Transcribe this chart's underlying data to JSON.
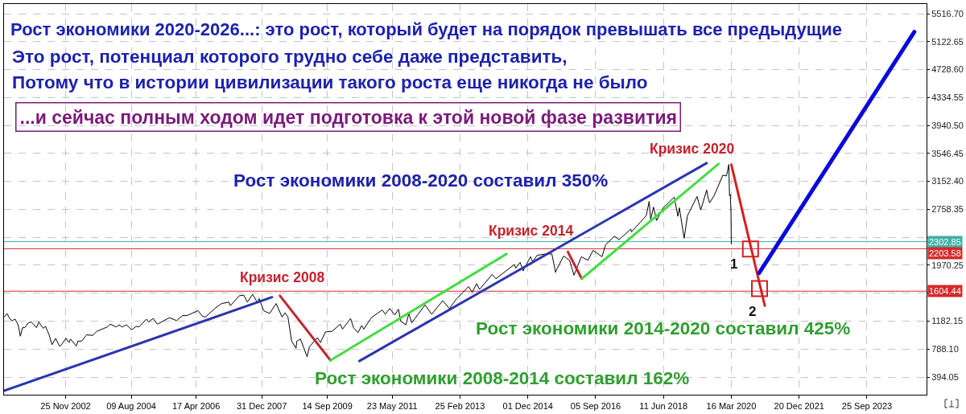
{
  "chart_data": {
    "type": "line",
    "title": "Рост экономики 2020-2026...: это рост, который будет на порядок превышать все предыдущие",
    "subtitle": "Это рост, потенциал которого трудно себе даже представить,\nПотому что в истории цивилизации такого роста еще никогда не было",
    "annotations": [
      "...и сейчас полным ходом идет подготовка к этой новой фазе развития",
      "Кризис 2020",
      "Рост экономики 2008-2020 составил 350%",
      "Кризис 2014",
      "Кризис 2008",
      "1",
      "2",
      "Рост экономики 2014-2020 составил 425%",
      "Рост экономики 2008-2014 составил 162%"
    ],
    "xlim": [
      "2001-04-19",
      "2025-04-13"
    ],
    "xticks": [
      {
        "value": "2002-11-25",
        "label": "25 Nov 2002"
      },
      {
        "value": "2004-08-09",
        "label": "09 Aug 2004"
      },
      {
        "value": "2006-04-17",
        "label": "17 Apr 2006"
      },
      {
        "value": "2007-12-31",
        "label": "31 Dec 2007"
      },
      {
        "value": "2009-09-14",
        "label": "14 Sep 2009"
      },
      {
        "value": "2011-05-23",
        "label": "23 May 2011"
      },
      {
        "value": "2013-02-25",
        "label": "25 Feb 2013"
      },
      {
        "value": "2014-12-01",
        "label": "01 Dec 2014"
      },
      {
        "value": "2016-09-05",
        "label": "05 Sep 2016"
      },
      {
        "value": "2018-06-11",
        "label": "11 Jun 2018"
      },
      {
        "value": "2020-03-16",
        "label": "16 Mar 2020"
      },
      {
        "value": "2021-12-20",
        "label": "20 Dec 2021"
      },
      {
        "value": "2023-09-25",
        "label": "25 Sep 2023"
      }
    ],
    "ylim": [
      145,
      5653
    ],
    "yticks": [
      394.05,
      {
        "value": 788.1,
        "label": "788.10"
      },
      1182.15,
      {
        "value": 1576.2,
        "label": null
      },
      1970.25,
      {
        "value": 2364.3,
        "label": null
      },
      2758.35,
      {
        "value": 3152.4,
        "label": "3152.40"
      },
      3546.45,
      {
        "value": 3940.5,
        "label": "3940.50"
      },
      4334.55,
      {
        "value": 4728.6,
        "label": "4728.60"
      },
      5122.65,
      {
        "value": 5516.7,
        "label": "5516.70"
      }
    ],
    "grid": true,
    "ref_lines": [
      {
        "axis": "y",
        "value": 2302.85,
        "label": "2302.85",
        "color": "#3fb0a8"
      },
      {
        "axis": "y",
        "value": 2203.58,
        "label": "2203.58",
        "color": "#d42a2a"
      },
      {
        "axis": "y",
        "value": 1604.44,
        "label": "1604.44",
        "color": "#d42a2a"
      }
    ],
    "series": [
      {
        "type": "line",
        "color": "#000000",
        "x": [
          "2001-04-20",
          "2001-05-18",
          "2001-06-15",
          "2001-07-06",
          "2001-08-03",
          "2001-08-31",
          "2001-09-21",
          "2001-10-12",
          "2001-11-02",
          "2001-12-07",
          "2002-01-04",
          "2002-02-22",
          "2002-03-15",
          "2002-04-26",
          "2002-05-17",
          "2002-06-21",
          "2002-07-19",
          "2002-08-23",
          "2002-09-27",
          "2002-10-11",
          "2002-11-29",
          "2002-12-27",
          "2003-01-10",
          "2003-03-07",
          "2003-03-21",
          "2003-04-25",
          "2003-06-13",
          "2003-08-08",
          "2003-09-19",
          "2003-12-26",
          "2004-01-23",
          "2004-03-19",
          "2004-04-16",
          "2004-05-14",
          "2004-06-25",
          "2004-08-13",
          "2004-09-24",
          "2004-10-22",
          "2004-12-31",
          "2005-01-21",
          "2005-03-04",
          "2005-04-15",
          "2005-08-05",
          "2005-10-14",
          "2005-12-09",
          "2006-01-20",
          "2006-05-05",
          "2006-06-16",
          "2006-07-14",
          "2006-10-20",
          "2006-12-15",
          "2007-02-23",
          "2007-03-09",
          "2007-06-01",
          "2007-07-13",
          "2007-08-17",
          "2007-10-05",
          "2007-11-23",
          "2007-12-07",
          "2008-01-18",
          "2008-03-14",
          "2008-05-16",
          "2008-07-11",
          "2008-08-08",
          "2008-09-05",
          "2008-10-10",
          "2008-11-21",
          "2008-11-28",
          "2009-01-02",
          "2009-03-06",
          "2009-03-27",
          "2009-06-12",
          "2009-07-10",
          "2009-08-28",
          "2009-10-30",
          "2010-01-15",
          "2010-02-05",
          "2010-04-23",
          "2010-05-21",
          "2010-07-02",
          "2010-08-06",
          "2010-08-27",
          "2010-11-05",
          "2011-02-18",
          "2011-03-18",
          "2011-04-29",
          "2011-06-17",
          "2011-07-22",
          "2011-08-12",
          "2011-09-30",
          "2011-10-28",
          "2011-11-25",
          "2012-03-30",
          "2012-06-01",
          "2012-09-14",
          "2012-11-16",
          "2013-01-25",
          "2013-05-17",
          "2013-06-21",
          "2013-08-02",
          "2013-08-30",
          "2013-12-27",
          "2014-01-31",
          "2014-07-25",
          "2014-08-08",
          "2014-09-19",
          "2014-10-17",
          "2014-12-26",
          "2015-01-16",
          "2015-02-27",
          "2015-05-22",
          "2015-07-17",
          "2015-08-21",
          "2015-09-04",
          "2015-11-06",
          "2016-01-01",
          "2016-02-12",
          "2016-04-22",
          "2016-06-24",
          "2016-08-12",
          "2016-11-04",
          "2016-12-09",
          "2017-03-03",
          "2017-04-14",
          "2017-08-04",
          "2017-08-11",
          "2017-12-29",
          "2018-01-26",
          "2018-02-09",
          "2018-03-09",
          "2018-04-06",
          "2018-06-08",
          "2018-09-21",
          "2018-10-26",
          "2018-11-09",
          "2018-12-24",
          "2019-01-25",
          "2019-04-26",
          "2019-05-31",
          "2019-07-26",
          "2019-08-09",
          "2019-08-23",
          "2019-10-04",
          "2019-12-27",
          "2020-01-31",
          "2020-02-21",
          "2020-02-28",
          "2020-03-06",
          "2020-03-13",
          "2020-03-16"
        ],
        "values": [
          1240,
          1290,
          1210,
          1190,
          1210,
          1130,
          970,
          1090,
          1090,
          1160,
          1170,
          1090,
          1170,
          1080,
          1110,
          990,
          850,
          940,
          830,
          840,
          940,
          880,
          930,
          830,
          900,
          900,
          990,
          980,
          1040,
          1100,
          1140,
          1100,
          1130,
          1100,
          1130,
          1060,
          1110,
          1100,
          1210,
          1170,
          1220,
          1140,
          1230,
          1190,
          1260,
          1260,
          1330,
          1250,
          1240,
          1370,
          1430,
          1450,
          1400,
          1540,
          1550,
          1450,
          1560,
          1440,
          1500,
          1330,
          1290,
          1430,
          1240,
          1300,
          1240,
          900,
          800,
          900,
          930,
          680,
          820,
          950,
          880,
          1030,
          1040,
          1140,
          1070,
          1220,
          1090,
          1020,
          1120,
          1070,
          1230,
          1340,
          1280,
          1360,
          1270,
          1350,
          1180,
          1130,
          1290,
          1160,
          1410,
          1280,
          1470,
          1360,
          1500,
          1670,
          1590,
          1710,
          1630,
          1840,
          1780,
          1980,
          1930,
          2010,
          1890,
          2090,
          2020,
          2110,
          2130,
          2130,
          1870,
          1920,
          2100,
          2040,
          1830,
          2090,
          2040,
          2180,
          2090,
          2260,
          2380,
          2330,
          2480,
          2440,
          2670,
          2870,
          2620,
          2790,
          2600,
          2780,
          2930,
          2660,
          2780,
          2350,
          2670,
          2940,
          2750,
          3030,
          2920,
          2850,
          2950,
          3240,
          3230,
          3390,
          2950,
          2970,
          2710,
          2270
        ]
      },
      {
        "type": "line",
        "color": "#2a35b0",
        "x": [
          "2001-04-19",
          "2008-04-07"
        ],
        "values": [
          200,
          1520
        ]
      },
      {
        "type": "line",
        "color": "#c0282d",
        "x": [
          "2008-06-21",
          "2009-10-14"
        ],
        "values": [
          1540,
          630
        ]
      },
      {
        "type": "line",
        "color": "#44dd44",
        "x": [
          "2009-10-14",
          "2014-05-13"
        ],
        "values": [
          630,
          2130
        ]
      },
      {
        "type": "line",
        "color": "#2a35b0",
        "x": [
          "2010-07-15",
          "2019-07-26"
        ],
        "values": [
          620,
          3410
        ]
      },
      {
        "type": "line",
        "color": "#c0282d",
        "x": [
          "2015-12-16",
          "2016-04-26"
        ],
        "values": [
          2160,
          1780
        ]
      },
      {
        "type": "line",
        "color": "#44dd44",
        "x": [
          "2016-04-26",
          "2019-11-16"
        ],
        "values": [
          1780,
          3400
        ]
      },
      {
        "type": "line",
        "color": "#d42020",
        "x": [
          "2020-03-16",
          "2021-01-28"
        ],
        "values": [
          3390,
          1400
        ]
      },
      {
        "type": "line",
        "color": "#0a0ad8",
        "x": [
          "2020-12-05",
          "2024-12-18"
        ],
        "values": [
          1860,
          5260
        ]
      },
      {
        "type": "scatter",
        "marker": "square",
        "color": "#d42020",
        "x": [
          "2020-09-14",
          "2020-12-09"
        ],
        "values": [
          2200,
          1640
        ]
      }
    ]
  }
}
